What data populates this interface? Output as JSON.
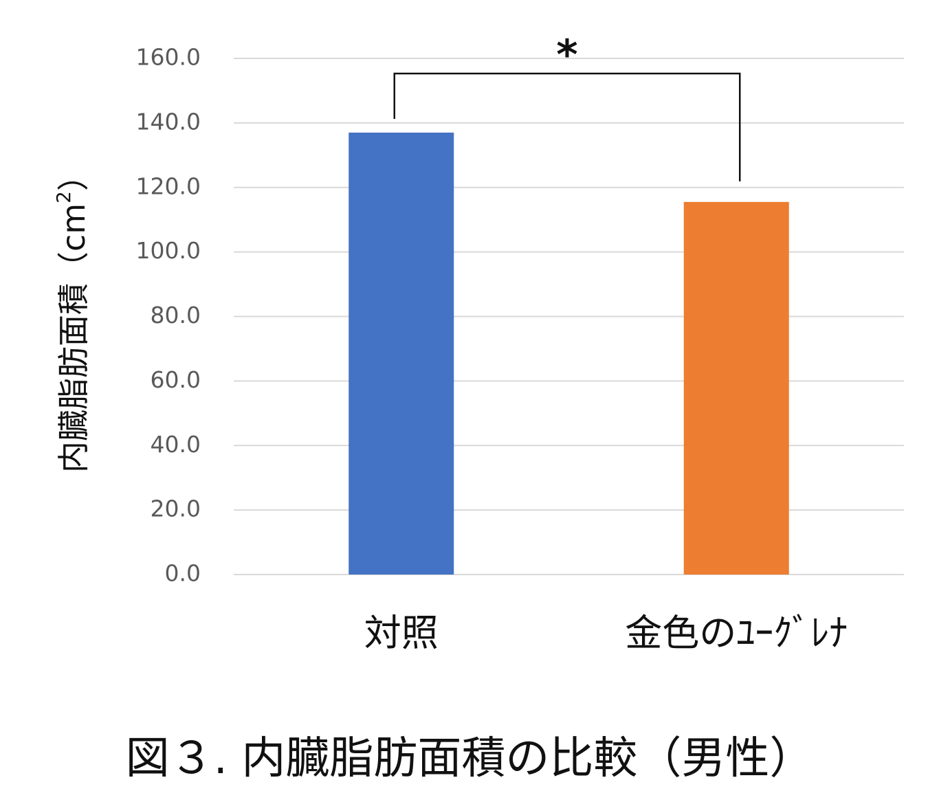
{
  "chart_data": {
    "type": "bar",
    "categories": [
      "対照",
      "金色のﾕｰｸﾞﾚﾅ"
    ],
    "values": [
      137.0,
      115.5
    ],
    "colors": [
      "#4472C4",
      "#ED7D31"
    ],
    "ylabel_main": "内臓脂肪面積",
    "ylabel_unit_open": "（cm",
    "ylabel_unit_sup": "2",
    "ylabel_unit_close": "）",
    "ylim": [
      0,
      160
    ],
    "yticks": [
      "0.0",
      "20.0",
      "40.0",
      "60.0",
      "80.0",
      "100.0",
      "120.0",
      "140.0",
      "160.0"
    ],
    "grid": true,
    "significance": "*"
  },
  "caption": "図３. 内臓脂肪面積の比較（男性）"
}
